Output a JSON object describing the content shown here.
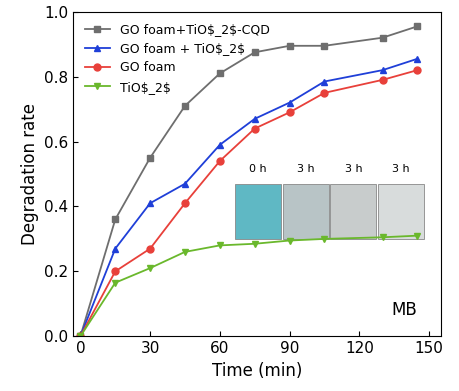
{
  "chart_data": {
    "type": "line",
    "x_label": "Time (min)",
    "y_label": "Degradation rate",
    "x": [
      0,
      15,
      30,
      45,
      60,
      75,
      90,
      105,
      130,
      145
    ],
    "series": [
      {
        "name": "GO foam+TiO$_2$-CQD",
        "color": "#6e6e6e",
        "marker": "square",
        "values": [
          0,
          0.36,
          0.55,
          0.71,
          0.81,
          0.875,
          0.895,
          0.895,
          0.92,
          0.955
        ]
      },
      {
        "name": "GO foam + TiO$_2$",
        "color": "#1f3fd8",
        "marker": "triangle_up",
        "values": [
          0,
          0.27,
          0.41,
          0.47,
          0.59,
          0.67,
          0.72,
          0.785,
          0.82,
          0.855
        ]
      },
      {
        "name": "GO foam",
        "color": "#e8403a",
        "marker": "circle",
        "values": [
          0,
          0.2,
          0.27,
          0.41,
          0.54,
          0.64,
          0.69,
          0.75,
          0.79,
          0.82
        ]
      },
      {
        "name": "TiO$_2$",
        "color": "#6ab82c",
        "marker": "triangle_down",
        "values": [
          0,
          0.165,
          0.21,
          0.26,
          0.28,
          0.285,
          0.295,
          0.3,
          0.305,
          0.31
        ]
      }
    ],
    "xlim": [
      -3,
      155
    ],
    "xticks": [
      0,
      30,
      60,
      90,
      120,
      150
    ],
    "ylim": [
      0,
      1.0
    ],
    "yticks": [
      {
        "value": 0,
        "label": "0.0"
      },
      0.2,
      0.4,
      0.6,
      0.8,
      {
        "value": 1.0,
        "label": "1.0"
      }
    ],
    "legend": "upper left",
    "annotations": [
      "MB",
      "0 h",
      "3 h",
      "3 h",
      "3 h"
    ]
  }
}
